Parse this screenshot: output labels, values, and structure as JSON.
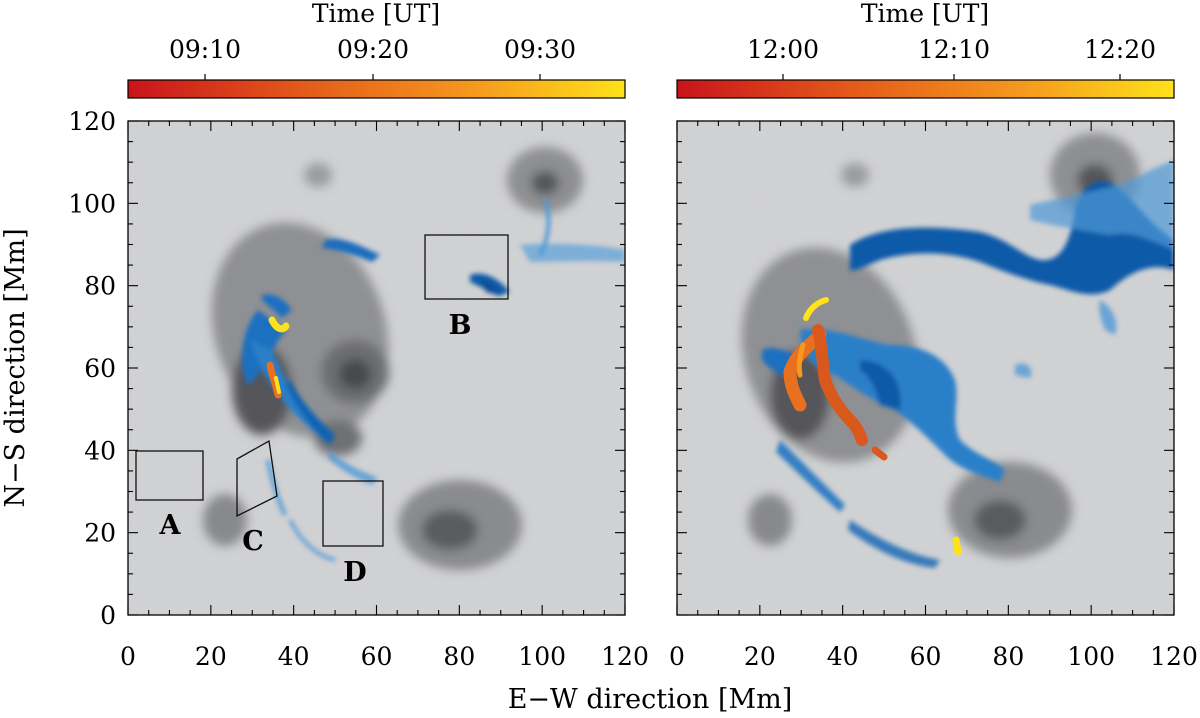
{
  "figure": {
    "ylabel": "N−S direction   [Mm]",
    "xlabel": "E−W direction   [Mm]",
    "axis_ticks": [
      "0",
      "20",
      "40",
      "60",
      "80",
      "100",
      "120"
    ],
    "axis_range": [
      0,
      120
    ],
    "panels": [
      {
        "colorbar": {
          "title": "Time   [UT]",
          "ticks": [
            "09:10",
            "09:20",
            "09:30"
          ],
          "colors": [
            "#c8141c",
            "#e35a1a",
            "#f59a1e",
            "#ffe21a"
          ]
        },
        "boxes": [
          {
            "label": "A"
          },
          {
            "label": "B"
          },
          {
            "label": "C"
          },
          {
            "label": "D"
          }
        ]
      },
      {
        "colorbar": {
          "title": "Time   [UT]",
          "ticks": [
            "12:00",
            "12:10",
            "12:20"
          ],
          "colors": [
            "#c8141c",
            "#e35a1a",
            "#f59a1e",
            "#ffe21a"
          ]
        },
        "boxes": []
      }
    ],
    "palette": {
      "background": "#d3d4d6",
      "penumbra": "#8e8f92",
      "umbra": "#4e4f52",
      "blue_dark": "#0f64b4",
      "blue_light": "#4f98d6",
      "orange": "#e8701e",
      "yellow": "#ffe21a"
    }
  }
}
